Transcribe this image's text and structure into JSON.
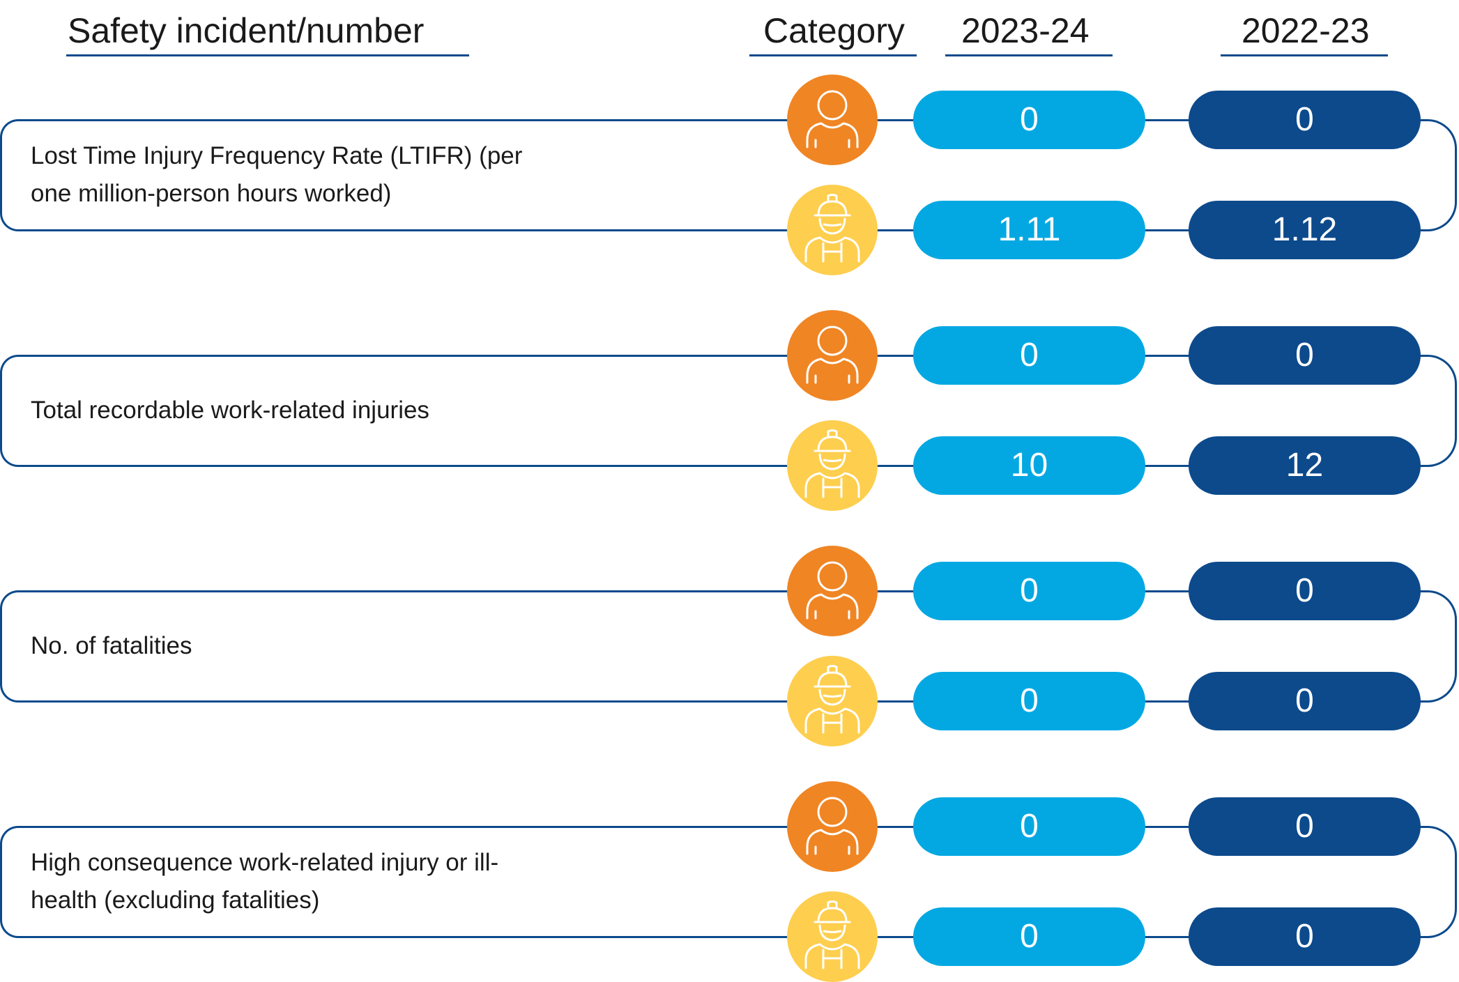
{
  "chart_data": {
    "type": "table",
    "headers": {
      "incident": "Safety incident/number",
      "category": "Category",
      "current_year": "2023-24",
      "previous_year": "2022-23"
    },
    "categories": [
      {
        "name": "employee",
        "icon": "employee-person-icon",
        "color": "#f08524"
      },
      {
        "name": "worker",
        "icon": "worker-hardhat-icon",
        "color": "#fece4e"
      }
    ],
    "series_colors": {
      "2023-24": "#03a8e2",
      "2022-23": "#0c4a8c"
    },
    "rows": [
      {
        "label": "Lost Time Injury Frequency Rate (LTIFR) (per one million-person hours worked)",
        "employee": {
          "current": "0",
          "previous": "0"
        },
        "worker": {
          "current": "1.11",
          "previous": "1.12"
        }
      },
      {
        "label": "Total recordable work-related injuries",
        "employee": {
          "current": "0",
          "previous": "0"
        },
        "worker": {
          "current": "10",
          "previous": "12"
        }
      },
      {
        "label": "No. of fatalities",
        "employee": {
          "current": "0",
          "previous": "0"
        },
        "worker": {
          "current": "0",
          "previous": "0"
        }
      },
      {
        "label": "High consequence work-related injury or ill-health (excluding fatalities)",
        "employee": {
          "current": "0",
          "previous": "0"
        },
        "worker": {
          "current": "0",
          "previous": "0"
        }
      }
    ]
  }
}
